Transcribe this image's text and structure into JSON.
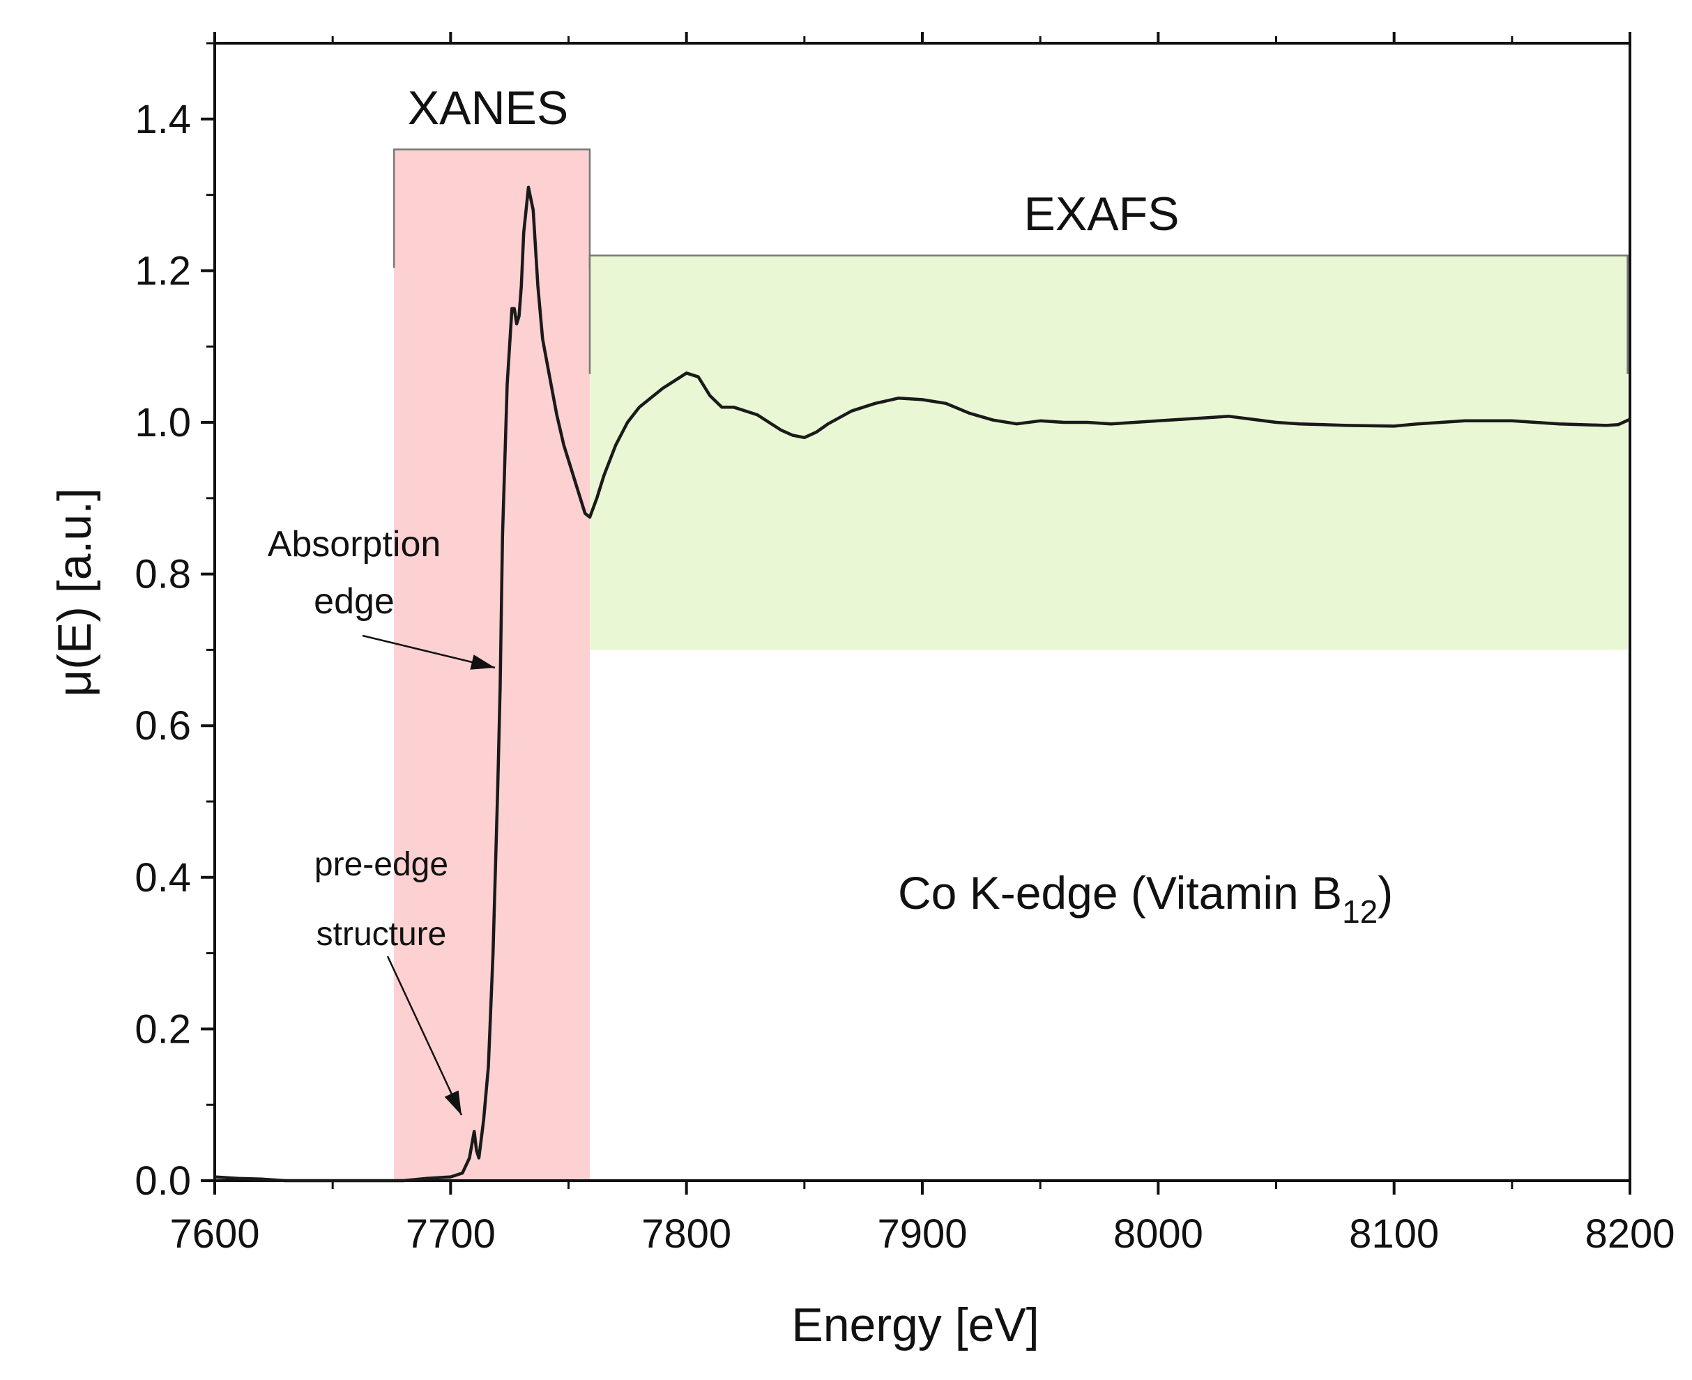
{
  "chart_data": {
    "type": "line",
    "title": "",
    "xlabel": "Energy [eV]",
    "ylabel": "μ(E) [a.u.]",
    "xlim": [
      7600,
      8200
    ],
    "ylim": [
      0,
      1.5
    ],
    "xticks": [
      7600,
      7700,
      7800,
      7900,
      8000,
      8100,
      8200
    ],
    "yticks": [
      0.0,
      0.2,
      0.4,
      0.6,
      0.8,
      1.0,
      1.2,
      1.4
    ],
    "xtick_labels": [
      "7600",
      "7700",
      "7800",
      "7900",
      "8000",
      "8100",
      "8200"
    ],
    "ytick_labels": [
      "0.0",
      "0.2",
      "0.4",
      "0.6",
      "0.8",
      "1.0",
      "1.2",
      "1.4"
    ],
    "grid": false,
    "line_color": "#1a1a1a",
    "regions": [
      {
        "name": "XANES",
        "label": "XANES",
        "x": [
          7676,
          7759
        ],
        "y": [
          0,
          1.36
        ],
        "bracket_y": 1.36,
        "color": "#fdd0d2"
      },
      {
        "name": "EXAFS",
        "label": "EXAFS",
        "x": [
          7759,
          8199
        ],
        "y": [
          0.7,
          1.22
        ],
        "bracket_y": 1.22,
        "color": "#e9f7d4"
      }
    ],
    "annotations": [
      {
        "lines": [
          "Absorption",
          "edge"
        ],
        "text_at": [
          7660,
          0.81
        ],
        "arrow_to": [
          7720,
          0.62
        ]
      },
      {
        "lines": [
          "pre-edge",
          "structure"
        ],
        "text_at": [
          7670,
          0.36
        ],
        "arrow_to": [
          7710,
          0.07
        ]
      }
    ],
    "sample_label": {
      "text": "Co K-edge (Vitamin B",
      "subscript": "12",
      "suffix": ")",
      "at": [
        7890,
        0.37
      ]
    },
    "series": [
      {
        "name": "Co K-edge (Vitamin B12)",
        "x": [
          7600,
          7610,
          7620,
          7630,
          7640,
          7650,
          7660,
          7670,
          7680,
          7690,
          7700,
          7705,
          7708,
          7710,
          7711,
          7712,
          7714,
          7716,
          7718,
          7720,
          7721,
          7722,
          7724,
          7726,
          7727,
          7728,
          7729,
          7730,
          7731,
          7733,
          7735,
          7737,
          7739,
          7742,
          7745,
          7748,
          7751,
          7754,
          7757,
          7759,
          7762,
          7765,
          7770,
          7775,
          7780,
          7790,
          7795,
          7800,
          7805,
          7810,
          7815,
          7820,
          7830,
          7840,
          7845,
          7850,
          7855,
          7860,
          7870,
          7880,
          7890,
          7900,
          7910,
          7920,
          7930,
          7940,
          7950,
          7960,
          7970,
          7980,
          8000,
          8020,
          8030,
          8040,
          8050,
          8060,
          8080,
          8100,
          8110,
          8120,
          8130,
          8150,
          8170,
          8190,
          8195,
          8200
        ],
        "y": [
          0.005,
          0.003,
          0.002,
          0.0,
          0.0,
          0.0,
          0.0,
          0.0,
          0.0,
          0.003,
          0.005,
          0.01,
          0.03,
          0.065,
          0.04,
          0.03,
          0.08,
          0.15,
          0.3,
          0.52,
          0.65,
          0.85,
          1.05,
          1.15,
          1.15,
          1.13,
          1.14,
          1.18,
          1.25,
          1.31,
          1.28,
          1.18,
          1.11,
          1.06,
          1.01,
          0.97,
          0.94,
          0.91,
          0.88,
          0.875,
          0.9,
          0.93,
          0.97,
          1.0,
          1.02,
          1.045,
          1.055,
          1.065,
          1.06,
          1.035,
          1.02,
          1.02,
          1.01,
          0.99,
          0.983,
          0.98,
          0.987,
          0.998,
          1.015,
          1.025,
          1.032,
          1.03,
          1.025,
          1.012,
          1.003,
          0.998,
          1.002,
          1.0,
          1.0,
          0.998,
          1.002,
          1.006,
          1.008,
          1.004,
          1.0,
          0.998,
          0.996,
          0.995,
          0.998,
          1.0,
          1.002,
          1.002,
          0.998,
          0.996,
          0.997,
          1.004
        ]
      }
    ]
  }
}
